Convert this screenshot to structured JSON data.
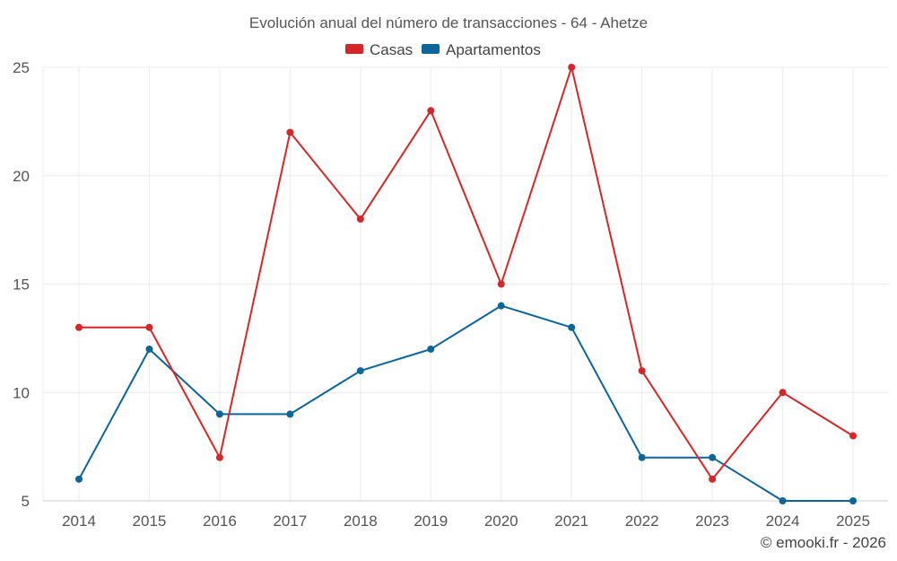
{
  "chart_data": {
    "type": "line",
    "title": "Evolución anual del número de transacciones - 64 - Ahetze",
    "categories": [
      "2014",
      "2015",
      "2016",
      "2017",
      "2018",
      "2019",
      "2020",
      "2021",
      "2022",
      "2023",
      "2024",
      "2025"
    ],
    "series": [
      {
        "name": "Casas",
        "color": "#d62728",
        "values": [
          13,
          13,
          7,
          22,
          18,
          23,
          15,
          25,
          11,
          6,
          10,
          8
        ]
      },
      {
        "name": "Apartamentos",
        "color": "#0d6699",
        "values": [
          6,
          12,
          9,
          9,
          11,
          12,
          14,
          13,
          7,
          7,
          5,
          5
        ]
      }
    ],
    "ylim": [
      5,
      25
    ],
    "yticks": [
      5,
      10,
      15,
      20,
      25
    ],
    "xlabel": "",
    "ylabel": "",
    "grid": true,
    "legend_position": "top-center"
  },
  "credit": "© emooki.fr - 2026"
}
